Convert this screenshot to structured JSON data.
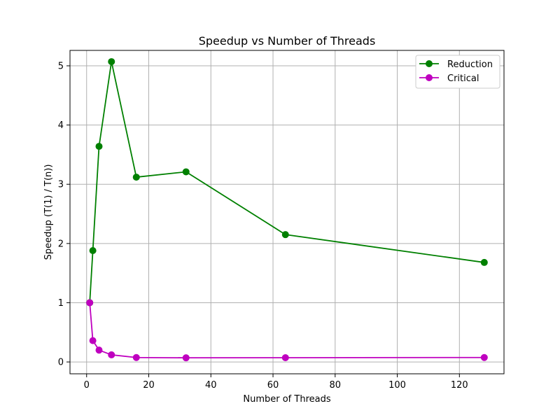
{
  "chart_data": {
    "type": "line",
    "title": "Speedup vs Number of Threads",
    "xlabel": "Number of Threads",
    "ylabel": "Speedup (T(1) / T(n))",
    "xlim": [
      -5.35,
      134.35
    ],
    "ylim": [
      -0.2,
      5.26
    ],
    "xticks": [
      0,
      20,
      40,
      60,
      80,
      100,
      120
    ],
    "yticks": [
      0,
      1,
      2,
      3,
      4,
      5
    ],
    "grid": true,
    "legend_position": "top-right",
    "x": [
      1,
      2,
      4,
      8,
      16,
      32,
      64,
      128
    ],
    "series": [
      {
        "name": "Reduction",
        "color": "#008000",
        "marker": "circle",
        "values": [
          1.0,
          1.88,
          3.64,
          5.07,
          3.12,
          3.21,
          2.15,
          1.68
        ]
      },
      {
        "name": "Critical",
        "color": "#bf00bf",
        "marker": "circle",
        "values": [
          1.0,
          0.36,
          0.2,
          0.12,
          0.075,
          0.07,
          0.072,
          0.075
        ]
      }
    ]
  }
}
